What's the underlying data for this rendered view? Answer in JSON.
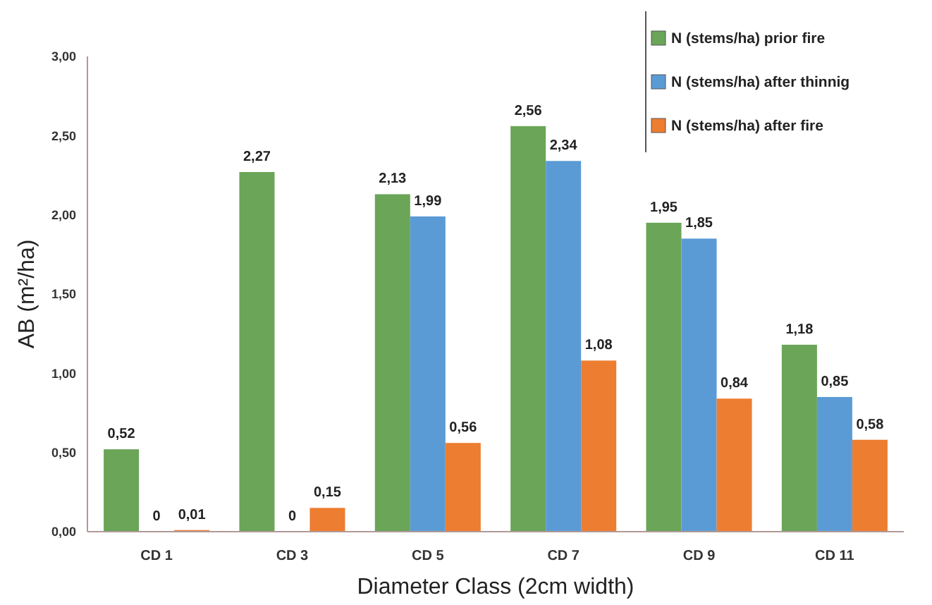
{
  "chart_data": {
    "type": "bar",
    "xlabel": "Diameter Class (2cm width)",
    "ylabel": "AB (m²/ha)",
    "categories": [
      "CD 1",
      "CD 3",
      "CD 5",
      "CD 7",
      "CD 9",
      "CD 11"
    ],
    "series": [
      {
        "name": "N (stems/ha) prior fire",
        "color": "#6aa558",
        "values": [
          0.52,
          2.27,
          2.13,
          2.56,
          1.95,
          1.18
        ],
        "value_labels": [
          "0,52",
          "2,27",
          "2,13",
          "2,56",
          "1,95",
          "1,18"
        ]
      },
      {
        "name": "N (stems/ha) after thinnig",
        "color": "#5b9bd5",
        "values": [
          0,
          0,
          1.99,
          2.34,
          1.85,
          0.85
        ],
        "value_labels": [
          "0",
          "0",
          "1,99",
          "2,34",
          "1,85",
          "0,85"
        ]
      },
      {
        "name": "N (stems/ha) after fire",
        "color": "#ed7d31",
        "values": [
          0.01,
          0.15,
          0.56,
          1.08,
          0.84,
          0.58
        ],
        "value_labels": [
          "0,01",
          "0,15",
          "0,56",
          "1,08",
          "0,84",
          "0,58"
        ]
      }
    ],
    "ylim": [
      0,
      3
    ],
    "yticks": [
      {
        "value": 0,
        "label": "0,00"
      },
      {
        "value": 0.5,
        "label": "0,50"
      },
      {
        "value": 1,
        "label": "1,00"
      },
      {
        "value": 1.5,
        "label": "1,50"
      },
      {
        "value": 2,
        "label": "2,00"
      },
      {
        "value": 2.5,
        "label": "2,50"
      },
      {
        "value": 3,
        "label": "3,00"
      }
    ],
    "grid": false,
    "legend": "top right"
  }
}
